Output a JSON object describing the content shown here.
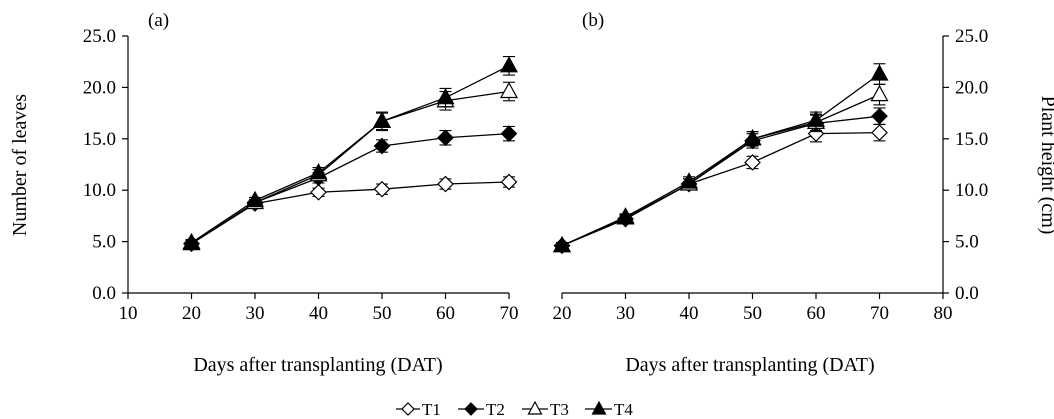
{
  "chart_data": [
    {
      "type": "line",
      "panel_label": "(a)",
      "xlabel": "Days after transplanting (DAT)",
      "ylabel": "Number of leaves",
      "xlim": [
        10,
        70
      ],
      "ylim": [
        0,
        25
      ],
      "xticks": [
        "10",
        "20",
        "30",
        "40",
        "50",
        "60",
        "70"
      ],
      "yticks": [
        "0.0",
        "5.0",
        "10.0",
        "15.0",
        "20.0",
        "25.0"
      ],
      "y_axis_side": "left",
      "error_bars": true,
      "x": [
        20,
        30,
        40,
        50,
        60,
        70
      ],
      "series": [
        {
          "name": "T1",
          "marker": "open-diamond",
          "values": [
            4.8,
            8.7,
            9.8,
            10.1,
            10.6,
            10.8
          ],
          "errors": [
            0.3,
            0.3,
            0.4,
            0.5,
            0.5,
            0.5
          ]
        },
        {
          "name": "T2",
          "marker": "filled-diamond",
          "values": [
            4.8,
            8.8,
            11.2,
            14.3,
            15.1,
            15.5
          ],
          "errors": [
            0.3,
            0.3,
            0.5,
            0.6,
            0.7,
            0.7
          ]
        },
        {
          "name": "T3",
          "marker": "open-triangle",
          "values": [
            4.8,
            8.8,
            11.5,
            16.7,
            18.7,
            19.6
          ],
          "errors": [
            0.3,
            0.3,
            0.5,
            0.8,
            0.9,
            0.9
          ]
        },
        {
          "name": "T4",
          "marker": "filled-triangle",
          "values": [
            4.9,
            9.0,
            11.7,
            16.7,
            19.0,
            22.1
          ],
          "errors": [
            0.3,
            0.3,
            0.5,
            0.9,
            0.9,
            0.9
          ]
        }
      ]
    },
    {
      "type": "line",
      "panel_label": "(b)",
      "xlabel": "Days after transplanting (DAT)",
      "ylabel": "Plant height (cm)",
      "xlim": [
        20,
        80
      ],
      "ylim": [
        0,
        25
      ],
      "xticks": [
        "20",
        "30",
        "40",
        "50",
        "60",
        "70",
        "80"
      ],
      "yticks": [
        "0.0",
        "5.0",
        "10.0",
        "15.0",
        "20.0",
        "25.0"
      ],
      "y_axis_side": "right",
      "error_bars": true,
      "x": [
        20,
        30,
        40,
        50,
        60,
        70
      ],
      "series": [
        {
          "name": "T1",
          "marker": "open-diamond",
          "values": [
            4.6,
            7.2,
            10.6,
            12.7,
            15.5,
            15.6
          ],
          "errors": [
            0.3,
            0.3,
            0.5,
            0.6,
            0.8,
            0.8
          ]
        },
        {
          "name": "T2",
          "marker": "filled-diamond",
          "values": [
            4.6,
            7.2,
            10.6,
            14.8,
            16.5,
            17.2
          ],
          "errors": [
            0.3,
            0.3,
            0.5,
            0.7,
            0.8,
            0.8
          ]
        },
        {
          "name": "T3",
          "marker": "open-triangle",
          "values": [
            4.6,
            7.3,
            10.6,
            15.0,
            16.6,
            19.3
          ],
          "errors": [
            0.3,
            0.3,
            0.5,
            0.7,
            0.8,
            1.0
          ]
        },
        {
          "name": "T4",
          "marker": "filled-triangle",
          "values": [
            4.6,
            7.4,
            10.8,
            15.0,
            16.8,
            21.3
          ],
          "errors": [
            0.3,
            0.3,
            0.5,
            0.7,
            0.8,
            1.0
          ]
        }
      ]
    }
  ],
  "legend": {
    "placement": "bottom-center",
    "entries": [
      {
        "name": "T1",
        "marker": "open-diamond"
      },
      {
        "name": "T2",
        "marker": "filled-diamond"
      },
      {
        "name": "T3",
        "marker": "open-triangle"
      },
      {
        "name": "T4",
        "marker": "filled-triangle"
      }
    ]
  },
  "colors": {
    "lines": "#000000",
    "background": "#ffffff"
  }
}
